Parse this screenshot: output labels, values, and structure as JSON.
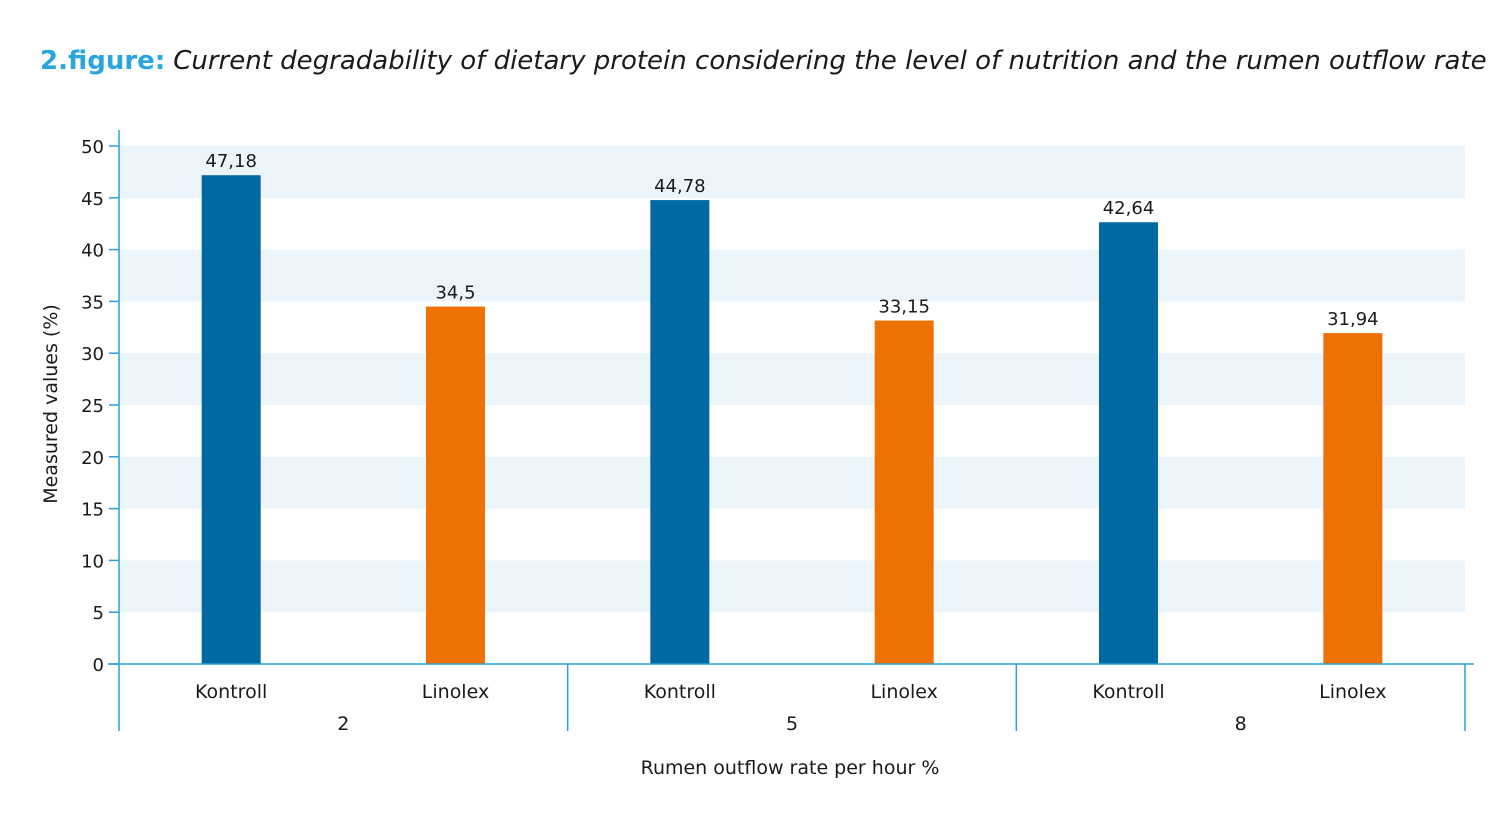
{
  "title": {
    "prefix": "2.figure:",
    "text": "Current degradability of dietary protein considering the level of nutrition and the rumen outflow rate"
  },
  "colors": {
    "title_prefix": "#2aa6df",
    "kontroll": "#0068a2",
    "linolex": "#ee7203",
    "band": "#edf5fc",
    "axis": "#2b9fd6"
  },
  "chart_data": {
    "type": "bar",
    "groups": [
      {
        "label": "2",
        "bars": [
          {
            "category": "Kontroll",
            "value": 47.18,
            "label": "47,18"
          },
          {
            "category": "Linolex",
            "value": 34.5,
            "label": "34,5"
          }
        ]
      },
      {
        "label": "5",
        "bars": [
          {
            "category": "Kontroll",
            "value": 44.78,
            "label": "44,78"
          },
          {
            "category": "Linolex",
            "value": 33.15,
            "label": "33,15"
          }
        ]
      },
      {
        "label": "8",
        "bars": [
          {
            "category": "Kontroll",
            "value": 42.64,
            "label": "42,64"
          },
          {
            "category": "Linolex",
            "value": 31.94,
            "label": "31,94"
          }
        ]
      }
    ],
    "xlabel": "Rumen outflow rate per hour %",
    "ylabel": "Measured values (%)",
    "ylim": [
      0,
      50
    ],
    "yticks": [
      0,
      5,
      10,
      15,
      20,
      25,
      30,
      35,
      40,
      45,
      50
    ],
    "grid": "alternating horizontal bands"
  }
}
